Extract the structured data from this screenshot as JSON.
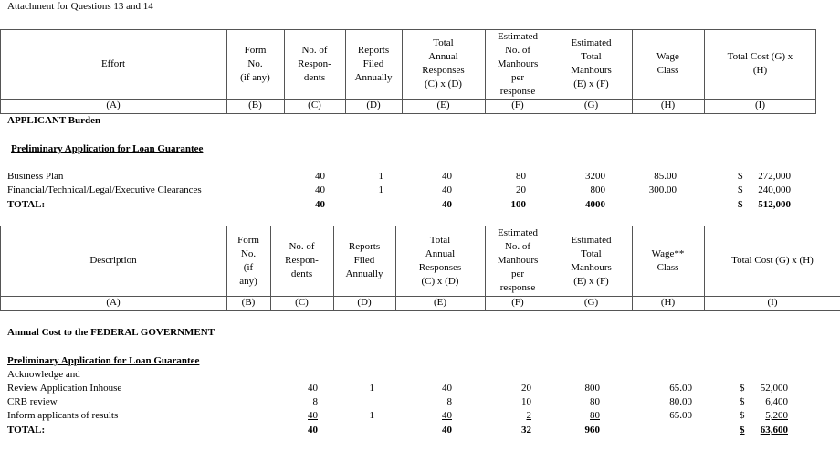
{
  "title": "Attachment for Questions 13 and 14",
  "table1": {
    "headers": [
      "Effort",
      "Form\nNo.\n(if any)",
      "No. of\nRespon-\ndents",
      "Reports\nFiled\nAnnually",
      "Total\nAnnual\nResponses\n(C) x (D)",
      "Estimated\nNo. of\nManhours\nper\nresponse",
      "Estimated\nTotal\nManhours\n(E) x (F)",
      "Wage\nClass",
      "Total Cost (G) x\n(H)"
    ],
    "letters": [
      "(A)",
      "(B)",
      "(C)",
      "(D)",
      "(E)",
      "(F)",
      "(G)",
      "(H)",
      "(I)"
    ]
  },
  "applicant": {
    "heading": "APPLICANT Burden",
    "subheading": "Preliminary Application for Loan Guarantee",
    "rows": [
      {
        "name": "Business Plan",
        "respondents": "40",
        "reports": "1",
        "responses": "40",
        "hours_per": "80",
        "total_hours": "3200",
        "wage": "85.00",
        "cost_sign": "$",
        "cost": "272,000"
      },
      {
        "name": "Financial/Technical/Legal/Executive Clearances",
        "respondents": "40",
        "reports": "1",
        "responses": "40",
        "hours_per": "20",
        "total_hours": "800",
        "wage": "300.00",
        "cost_sign": "$",
        "cost": "240,000"
      },
      {
        "name": "TOTAL:",
        "respondents": "40",
        "reports": "",
        "responses": "40",
        "hours_per": "100",
        "total_hours": "4000",
        "wage": "",
        "cost_sign": "$",
        "cost": "512,000"
      }
    ]
  },
  "table2": {
    "headers": [
      "Description",
      "Form\nNo.\n(if\nany)",
      "No. of\nRespon-\ndents",
      "Reports\nFiled\nAnnually",
      "Total\nAnnual\nResponses\n(C) x (D)",
      "Estimated\nNo. of\nManhours\nper\nresponse",
      "Estimated\nTotal\nManhours\n(E) x (F)",
      "Wage**\nClass",
      "Total Cost (G) x (H)"
    ],
    "letters": [
      "(A)",
      "(B)",
      "(C)",
      "(D)",
      "(E)",
      "(F)",
      "(G)",
      "(H)",
      "(I)"
    ]
  },
  "federal": {
    "heading": "Annual Cost to the FEDERAL GOVERNMENT",
    "subheading": "Preliminary Application for Loan Guarantee",
    "pre_line": "Acknowledge and",
    "rows": [
      {
        "name": "Review Application Inhouse",
        "respondents": "40",
        "reports": "1",
        "responses": "40",
        "hours_per": "20",
        "total_hours": "800",
        "wage": "65.00",
        "cost_sign": "$",
        "cost": "52,000"
      },
      {
        "name": "CRB review",
        "respondents": "8",
        "reports": "",
        "responses": "8",
        "hours_per": "10",
        "total_hours": "80",
        "wage": "80.00",
        "cost_sign": "$",
        "cost": "6,400"
      },
      {
        "name": "Inform applicants of results",
        "respondents": "40",
        "reports": "1",
        "responses": "40",
        "hours_per": "2",
        "total_hours": "80",
        "wage": "65.00",
        "cost_sign": "$",
        "cost": "5,200"
      },
      {
        "name": "TOTAL:",
        "respondents": "40",
        "reports": "",
        "responses": "40",
        "hours_per": "32",
        "total_hours": "960",
        "wage": "",
        "cost_sign": "$",
        "cost": "63,600"
      }
    ]
  }
}
